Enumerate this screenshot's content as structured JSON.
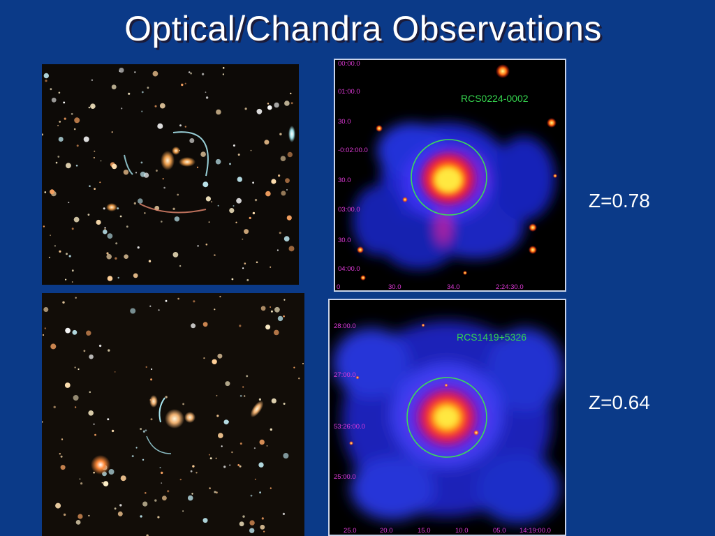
{
  "slide": {
    "title": "Optical/Chandra Observations",
    "background_color": "#0b3a88"
  },
  "clusters": [
    {
      "name": "RCS0224-0002",
      "redshift_label": "Z=0.78",
      "y_axis_labels": [
        "00:00.0",
        "01:00.0",
        "30.0",
        "-0:02:00.0",
        "30.0",
        "03:00.0",
        "30.0",
        "04:00.0"
      ],
      "x_axis_labels": [
        "0",
        "30.0",
        "34.0",
        "2:24:30.0"
      ]
    },
    {
      "name": "RCS1419+5326",
      "redshift_label": "Z=0.64",
      "y_axis_labels": [
        "28:00.0",
        "27:00.0",
        "53:26:00.0",
        "25:00.0"
      ],
      "x_axis_labels": [
        "25.0",
        "20.0",
        "15.0",
        "10.0",
        "05.0",
        "14:19:00.0"
      ]
    }
  ],
  "colors": {
    "xray_aperture": "#3ddc58",
    "axis_labels": "#e03ad8",
    "cluster_name": "#35d44e"
  }
}
